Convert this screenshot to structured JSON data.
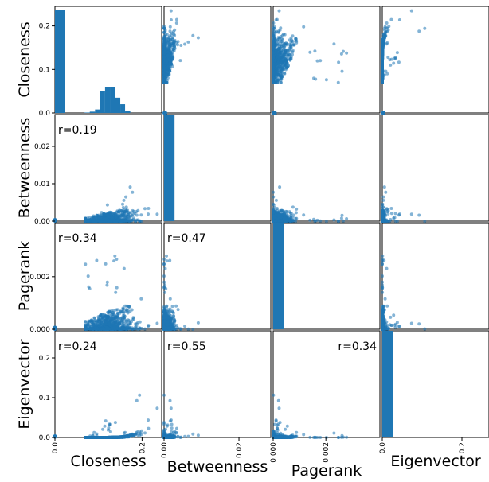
{
  "chart_data": {
    "type": "scatter_matrix",
    "variables": [
      "Closeness",
      "Betweenness",
      "Pagerank",
      "Eigenvector"
    ],
    "ranges": {
      "Closeness": [
        0,
        0.245
      ],
      "Betweenness": [
        0,
        0.0285
      ],
      "Pagerank": [
        0,
        0.00405
      ],
      "Eigenvector": [
        0,
        0.268
      ]
    },
    "ticks": {
      "Closeness": [
        {
          "v": 0.0,
          "label": "0.0"
        },
        {
          "v": 0.2,
          "label": "0.2"
        }
      ],
      "Betweenness": [
        {
          "v": 0.0,
          "label": "0.00"
        },
        {
          "v": 0.02,
          "label": "0.02"
        }
      ],
      "Pagerank": [
        {
          "v": 0.0,
          "label": "0.000"
        },
        {
          "v": 0.002,
          "label": "0.002"
        }
      ],
      "Eigenvector": [
        {
          "v": 0.0,
          "label": "0.0"
        },
        {
          "v": 0.2,
          "label": "0.2"
        }
      ]
    },
    "y_tick_labels": {
      "Closeness": [
        {
          "v": 0.0,
          "label": "0.0"
        },
        {
          "v": 0.1,
          "label": "0.1"
        },
        {
          "v": 0.2,
          "label": "0.2"
        }
      ],
      "Betweenness": [
        {
          "v": 0.0,
          "label": "0.00"
        },
        {
          "v": 0.01,
          "label": "0.01"
        },
        {
          "v": 0.02,
          "label": "0.02"
        }
      ],
      "Pagerank": [
        {
          "v": 0.0,
          "label": "0.000"
        },
        {
          "v": 0.002,
          "label": "0.002"
        }
      ],
      "Eigenvector": [
        {
          "v": 0.0,
          "label": "0.0"
        },
        {
          "v": 0.1,
          "label": "0.1"
        },
        {
          "v": 0.2,
          "label": "0.2"
        }
      ]
    },
    "correlations": [
      {
        "row": "Betweenness",
        "col": "Closeness",
        "label": "r=0.19",
        "corner": "left"
      },
      {
        "row": "Pagerank",
        "col": "Closeness",
        "label": "r=0.34",
        "corner": "left"
      },
      {
        "row": "Pagerank",
        "col": "Betweenness",
        "label": "r=0.47",
        "corner": "left"
      },
      {
        "row": "Eigenvector",
        "col": "Closeness",
        "label": "r=0.24",
        "corner": "left"
      },
      {
        "row": "Eigenvector",
        "col": "Betweenness",
        "label": "r=0.55",
        "corner": "left"
      },
      {
        "row": "Eigenvector",
        "col": "Pagerank",
        "label": "r=0.34",
        "corner": "right"
      }
    ],
    "histograms": {
      "Closeness": {
        "bins": [
          [
            0.0,
            0.022,
            0.237
          ],
          [
            0.034,
            0.046,
            0.0
          ],
          [
            0.046,
            0.058,
            0.0
          ],
          [
            0.058,
            0.068,
            0.0
          ],
          [
            0.068,
            0.08,
            0.001
          ],
          [
            0.08,
            0.092,
            0.003
          ],
          [
            0.092,
            0.103,
            0.008
          ],
          [
            0.103,
            0.115,
            0.05
          ],
          [
            0.115,
            0.127,
            0.059
          ],
          [
            0.127,
            0.138,
            0.06
          ],
          [
            0.138,
            0.15,
            0.035
          ],
          [
            0.15,
            0.161,
            0.02
          ],
          [
            0.161,
            0.173,
            0.004
          ]
        ]
      },
      "Betweenness": {
        "bins": [
          [
            0.0,
            0.0028,
            0.0285
          ]
        ]
      },
      "Pagerank": {
        "bins": [
          [
            0.0,
            0.0004,
            0.00405
          ]
        ]
      },
      "Eigenvector": {
        "bins": [
          [
            0.0,
            0.027,
            0.268
          ]
        ]
      }
    },
    "grid": false,
    "legend": "none"
  }
}
